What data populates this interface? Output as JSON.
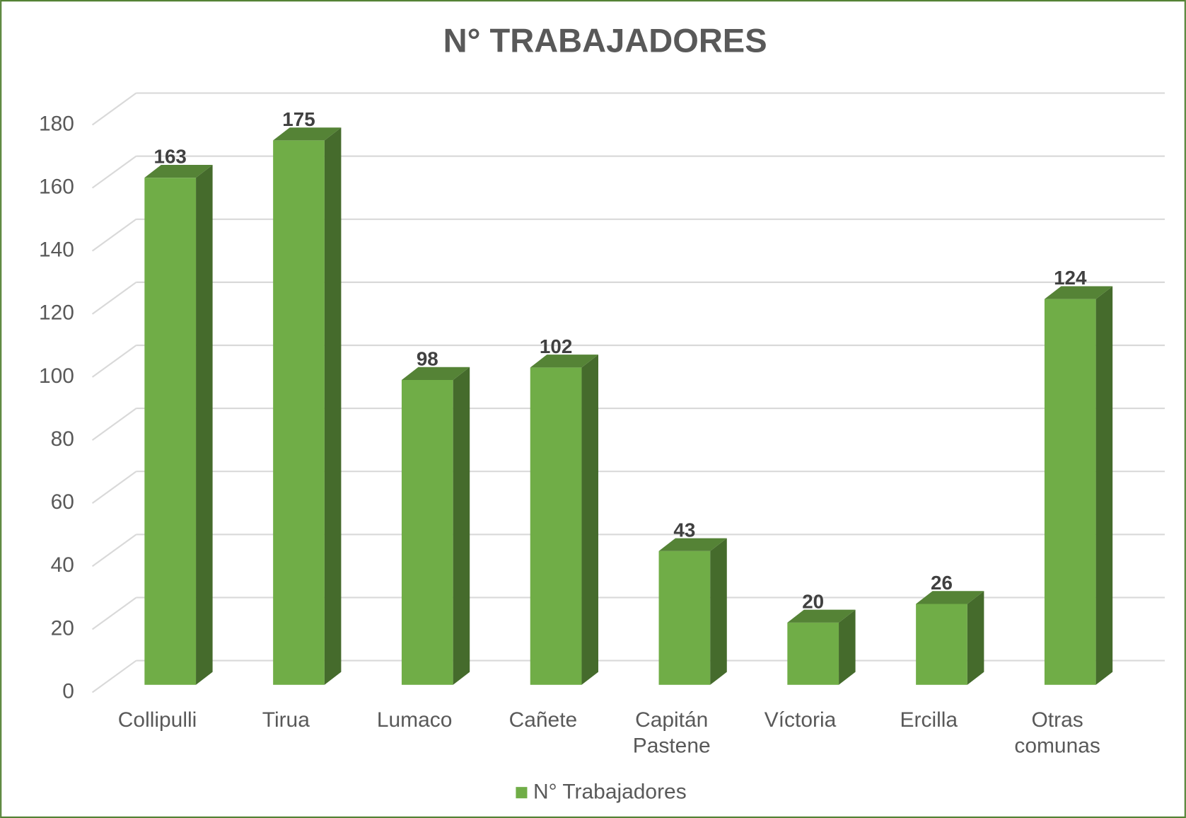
{
  "chart_data": {
    "type": "bar3d",
    "title": "N° TRABAJADORES",
    "categories": [
      "Collipulli",
      "Tirua",
      "Lumaco",
      "Cañete",
      "Capitán Pastene",
      "Víctoria",
      "Ercilla",
      "Otras comunas"
    ],
    "series": [
      {
        "name": "N° Trabajadores",
        "color": "#70ad47",
        "values": [
          163,
          175,
          98,
          102,
          43,
          20,
          26,
          124
        ]
      }
    ],
    "ylim": [
      0,
      180
    ],
    "yticks": [
      0,
      20,
      40,
      60,
      80,
      100,
      120,
      140,
      160,
      180
    ],
    "grid": true,
    "legend": "bottom"
  }
}
